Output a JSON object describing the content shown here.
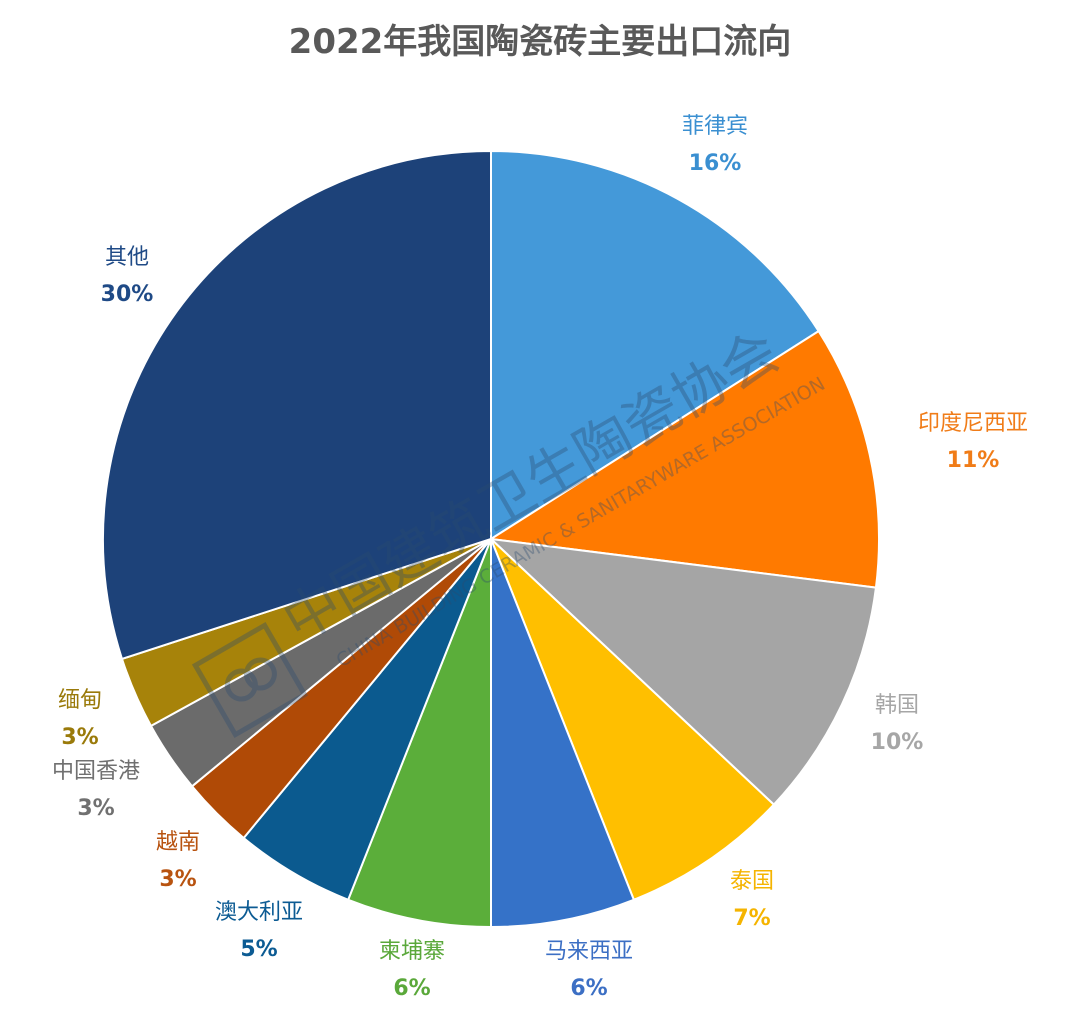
{
  "chart_data": {
    "type": "pie",
    "title": "2022年我国陶瓷砖主要出口流向",
    "start_angle_deg": 0,
    "direction": "clockwise",
    "slices": [
      {
        "label": "菲律宾",
        "value": 16,
        "pct_text": "16%",
        "color": "#4499D9"
      },
      {
        "label": "印度尼西亚",
        "value": 11,
        "pct_text": "11%",
        "color": "#FF7A00"
      },
      {
        "label": "韩国",
        "value": 10,
        "pct_text": "10%",
        "color": "#A5A5A5"
      },
      {
        "label": "泰国",
        "value": 7,
        "pct_text": "7%",
        "color": "#FFBF00"
      },
      {
        "label": "马来西亚",
        "value": 6,
        "pct_text": "6%",
        "color": "#3572C8"
      },
      {
        "label": "柬埔寨",
        "value": 6,
        "pct_text": "6%",
        "color": "#5BAE3A"
      },
      {
        "label": "澳大利亚",
        "value": 5,
        "pct_text": "5%",
        "color": "#0B5A8F"
      },
      {
        "label": "越南",
        "value": 3,
        "pct_text": "3%",
        "color": "#B04A06"
      },
      {
        "label": "中国香港",
        "value": 3,
        "pct_text": "3%",
        "color": "#6B6B6B"
      },
      {
        "label": "缅甸",
        "value": 3,
        "pct_text": "3%",
        "color": "#A7830A"
      },
      {
        "label": "其他",
        "value": 30,
        "pct_text": "30%",
        "color": "#1D4279"
      }
    ],
    "label_colors": [
      "#3A8FD1",
      "#F07C18",
      "#A6A6A6",
      "#F5B400",
      "#3C6FC4",
      "#5AA83A",
      "#0C5B93",
      "#B85310",
      "#707070",
      "#9A7A0A",
      "#1F4A86"
    ]
  },
  "watermark": {
    "org_cn": "中国建筑卫生陶瓷协会",
    "org_en": "CHINA BUILDING CERAMIC & SANITARYWARE ASSOCIATION"
  }
}
